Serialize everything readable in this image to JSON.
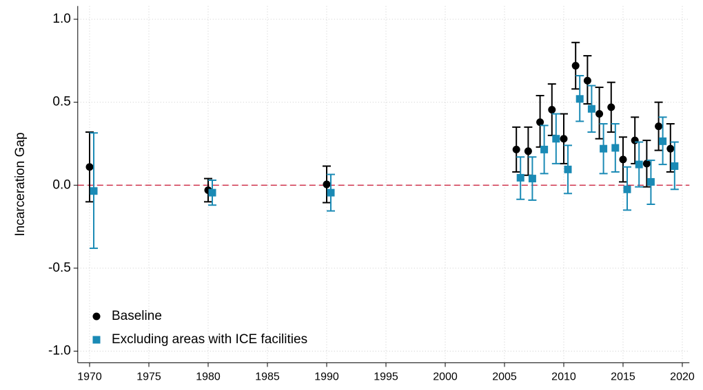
{
  "chart_data": {
    "type": "errorbar",
    "y_label": "Incarceration Gap",
    "x": [
      1970,
      1980,
      1990,
      2006,
      2007,
      2008,
      2009,
      2010,
      2011,
      2012,
      2013,
      2014,
      2015,
      2016,
      2017,
      2018,
      2019
    ],
    "series": [
      {
        "name": "Baseline",
        "color": "#000000",
        "marker": "circle",
        "values": [
          0.11,
          -0.03,
          0.005,
          0.215,
          0.205,
          0.38,
          0.455,
          0.28,
          0.72,
          0.63,
          0.43,
          0.47,
          0.155,
          0.27,
          0.13,
          0.355,
          0.22
        ],
        "lower": [
          -0.1,
          -0.1,
          -0.105,
          0.08,
          0.06,
          0.23,
          0.3,
          0.13,
          0.58,
          0.49,
          0.28,
          0.32,
          0.02,
          0.13,
          -0.01,
          0.21,
          0.08
        ],
        "upper": [
          0.32,
          0.04,
          0.115,
          0.35,
          0.35,
          0.54,
          0.61,
          0.43,
          0.86,
          0.78,
          0.59,
          0.62,
          0.29,
          0.41,
          0.27,
          0.5,
          0.37
        ]
      },
      {
        "name": "Excluding areas with ICE facilities",
        "color": "#1a8ab5",
        "marker": "square",
        "values": [
          -0.035,
          -0.045,
          -0.045,
          0.045,
          0.04,
          0.215,
          0.28,
          0.095,
          0.52,
          0.46,
          0.22,
          0.225,
          -0.025,
          0.125,
          0.02,
          0.265,
          0.115
        ],
        "lower": [
          -0.38,
          -0.12,
          -0.155,
          -0.085,
          -0.09,
          0.07,
          0.13,
          -0.05,
          0.385,
          0.32,
          0.07,
          0.08,
          -0.15,
          -0.01,
          -0.115,
          0.125,
          -0.025
        ],
        "upper": [
          0.315,
          0.03,
          0.065,
          0.17,
          0.17,
          0.36,
          0.43,
          0.24,
          0.66,
          0.6,
          0.37,
          0.37,
          0.11,
          0.26,
          0.15,
          0.41,
          0.26
        ]
      }
    ],
    "xlim": [
      1969,
      2020.6
    ],
    "ylim": [
      -1.07,
      1.08
    ],
    "xticks": [
      1970,
      1975,
      1980,
      1985,
      1990,
      1995,
      2000,
      2005,
      2010,
      2015,
      2020
    ],
    "yticks": [
      {
        "value": -1,
        "label": "-1.0"
      },
      -0.5,
      {
        "value": 0,
        "label": "0.0"
      },
      0.5,
      {
        "value": 1,
        "label": "1.0"
      }
    ],
    "reference_line": {
      "y": 0,
      "color": "#c8102e"
    },
    "grid": true,
    "legend": "lower left"
  }
}
